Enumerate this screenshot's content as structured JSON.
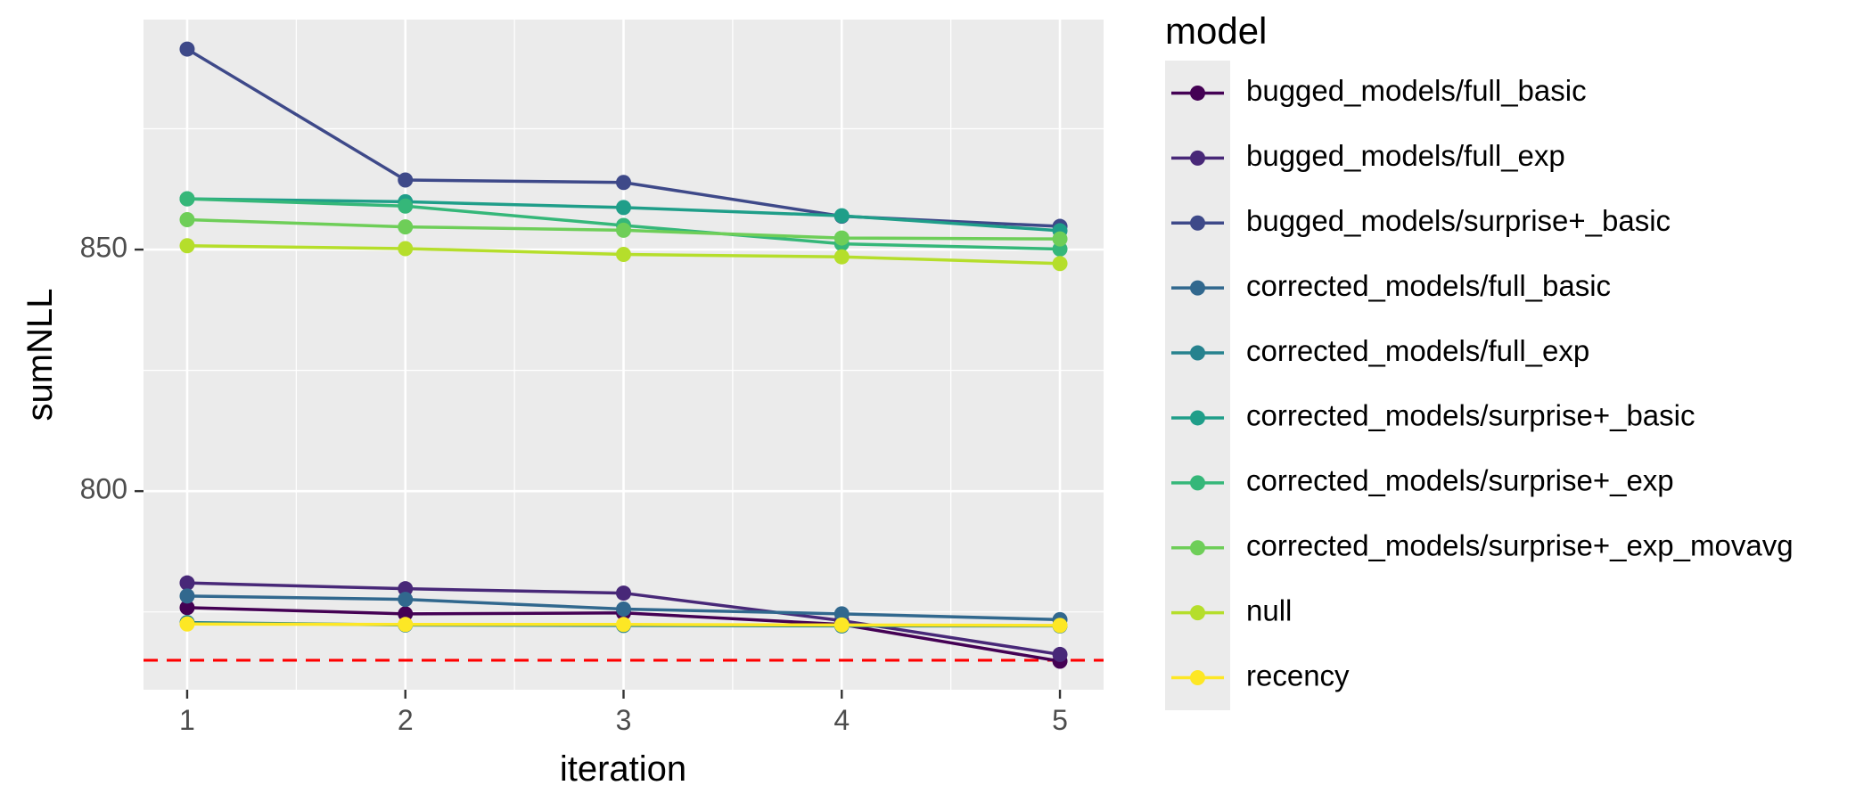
{
  "chart_data": {
    "type": "line",
    "title": "",
    "xlabel": "iteration",
    "ylabel": "sumNLL",
    "x": [
      1,
      2,
      3,
      4,
      5
    ],
    "xlim": [
      0.8,
      5.2
    ],
    "ylim": [
      758.9,
      897.6
    ],
    "x_ticks": [
      1,
      2,
      3,
      4,
      5
    ],
    "y_ticks": [
      800,
      850
    ],
    "grid": true,
    "legend": {
      "title": "model",
      "position": "right"
    },
    "reference_line": {
      "y": 765,
      "color": "#ff0000",
      "style": "dashed"
    },
    "series": [
      {
        "name": "bugged_models/full_basic",
        "color": "#440154",
        "values": [
          775.9,
          774.6,
          774.8,
          772.4,
          764.8
        ]
      },
      {
        "name": "bugged_models/full_exp",
        "color": "#482878",
        "values": [
          781.0,
          779.8,
          778.9,
          773.2,
          766.2
        ]
      },
      {
        "name": "bugged_models/surprise+_basic",
        "color": "#3e4989",
        "values": [
          891.5,
          864.4,
          863.9,
          856.9,
          854.8
        ]
      },
      {
        "name": "corrected_models/full_basic",
        "color": "#31688e",
        "values": [
          778.3,
          777.6,
          775.6,
          774.6,
          773.4
        ]
      },
      {
        "name": "corrected_models/full_exp",
        "color": "#26828e",
        "values": [
          772.8,
          772.3,
          772.2,
          772.1,
          772.1
        ]
      },
      {
        "name": "corrected_models/surprise+_basic",
        "color": "#1f9e89",
        "values": [
          860.5,
          859.9,
          858.7,
          857.0,
          853.9
        ]
      },
      {
        "name": "corrected_models/surprise+_exp",
        "color": "#35b779",
        "values": [
          860.5,
          859.0,
          855.0,
          851.2,
          850.1
        ]
      },
      {
        "name": "corrected_models/surprise+_exp_movavg",
        "color": "#6ece58",
        "values": [
          856.2,
          854.7,
          854.0,
          852.4,
          852.2
        ]
      },
      {
        "name": "null",
        "color": "#b5de2b",
        "values": [
          850.8,
          850.2,
          849.0,
          848.5,
          847.1
        ]
      },
      {
        "name": "recency",
        "color": "#fde725",
        "values": [
          772.5,
          772.4,
          772.4,
          772.3,
          772.2
        ]
      }
    ]
  }
}
